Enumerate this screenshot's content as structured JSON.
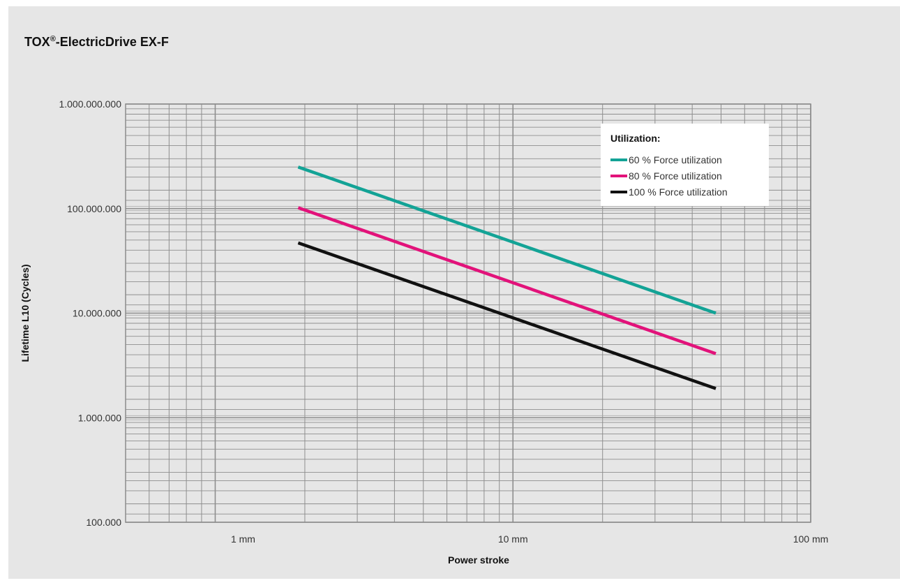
{
  "chart_data": {
    "type": "line",
    "title_prefix": "TOX",
    "title_mark": "®",
    "title_suffix": "-ElectricDrive EX-F",
    "xlabel": "Power stroke",
    "ylabel": "Lifetime L10 (Cycles)",
    "x_scale": "log",
    "y_scale": "log",
    "xlim": [
      0.5,
      100
    ],
    "ylim": [
      100000,
      1000000000
    ],
    "grid": true,
    "x_ticks": [
      {
        "value": 1,
        "label": "1 mm"
      },
      {
        "value": 10,
        "label": "10 mm"
      },
      {
        "value": 100,
        "label": "100 mm"
      }
    ],
    "y_ticks": [
      {
        "value": 1000000000,
        "label": "1.000.000.000"
      },
      {
        "value": 100000000,
        "label": "100.000.000"
      },
      {
        "value": 10000000,
        "label": "10.000.000"
      },
      {
        "value": 1000000,
        "label": "1.000.000"
      },
      {
        "value": 100000,
        "label": "100.000"
      }
    ],
    "legend": {
      "title": "Utilization:",
      "placement": "top-right"
    },
    "series": [
      {
        "name": "60 % Force utilization",
        "color": "#13a396",
        "x": [
          1.9,
          48
        ],
        "y": [
          250000000,
          10000000
        ]
      },
      {
        "name": "80 % Force utilization",
        "color": "#e2127a",
        "x": [
          1.9,
          48
        ],
        "y": [
          102000000,
          4100000
        ]
      },
      {
        "name": "100 % Force utilization",
        "color": "#111111",
        "x": [
          1.9,
          48
        ],
        "y": [
          47000000,
          1900000
        ]
      }
    ]
  }
}
